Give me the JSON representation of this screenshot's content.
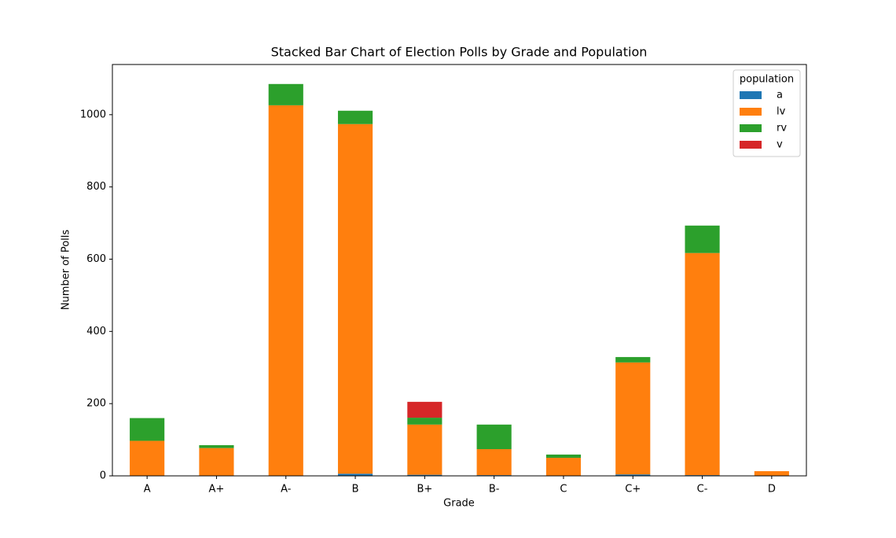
{
  "chart_data": {
    "type": "stacked_bar",
    "title": "Stacked Bar Chart of Election Polls by Grade and Population",
    "x_label": "Grade",
    "y_label": "Number of Polls",
    "categories": [
      "A",
      "A+",
      "A-",
      "B",
      "B+",
      "B-",
      "C",
      "C+",
      "C-",
      "D"
    ],
    "series": [
      {
        "name": "a",
        "color": "#1f77b4",
        "values": [
          0,
          0,
          0,
          6,
          3,
          2,
          0,
          4,
          2,
          0
        ]
      },
      {
        "name": "lv",
        "color": "#ff7f0e",
        "values": [
          97,
          77,
          1026,
          968,
          139,
          72,
          50,
          310,
          615,
          13
        ]
      },
      {
        "name": "rv",
        "color": "#2ca02c",
        "values": [
          63,
          8,
          59,
          37,
          19,
          68,
          9,
          15,
          76,
          0
        ]
      },
      {
        "name": "v",
        "color": "#d62728",
        "values": [
          0,
          0,
          0,
          0,
          44,
          0,
          0,
          0,
          0,
          0
        ]
      }
    ],
    "legend_title": "population",
    "legend_position": "upper right",
    "ylim": [
      0,
      1139
    ],
    "yticks": [
      0,
      200,
      400,
      600,
      800,
      1000
    ]
  }
}
